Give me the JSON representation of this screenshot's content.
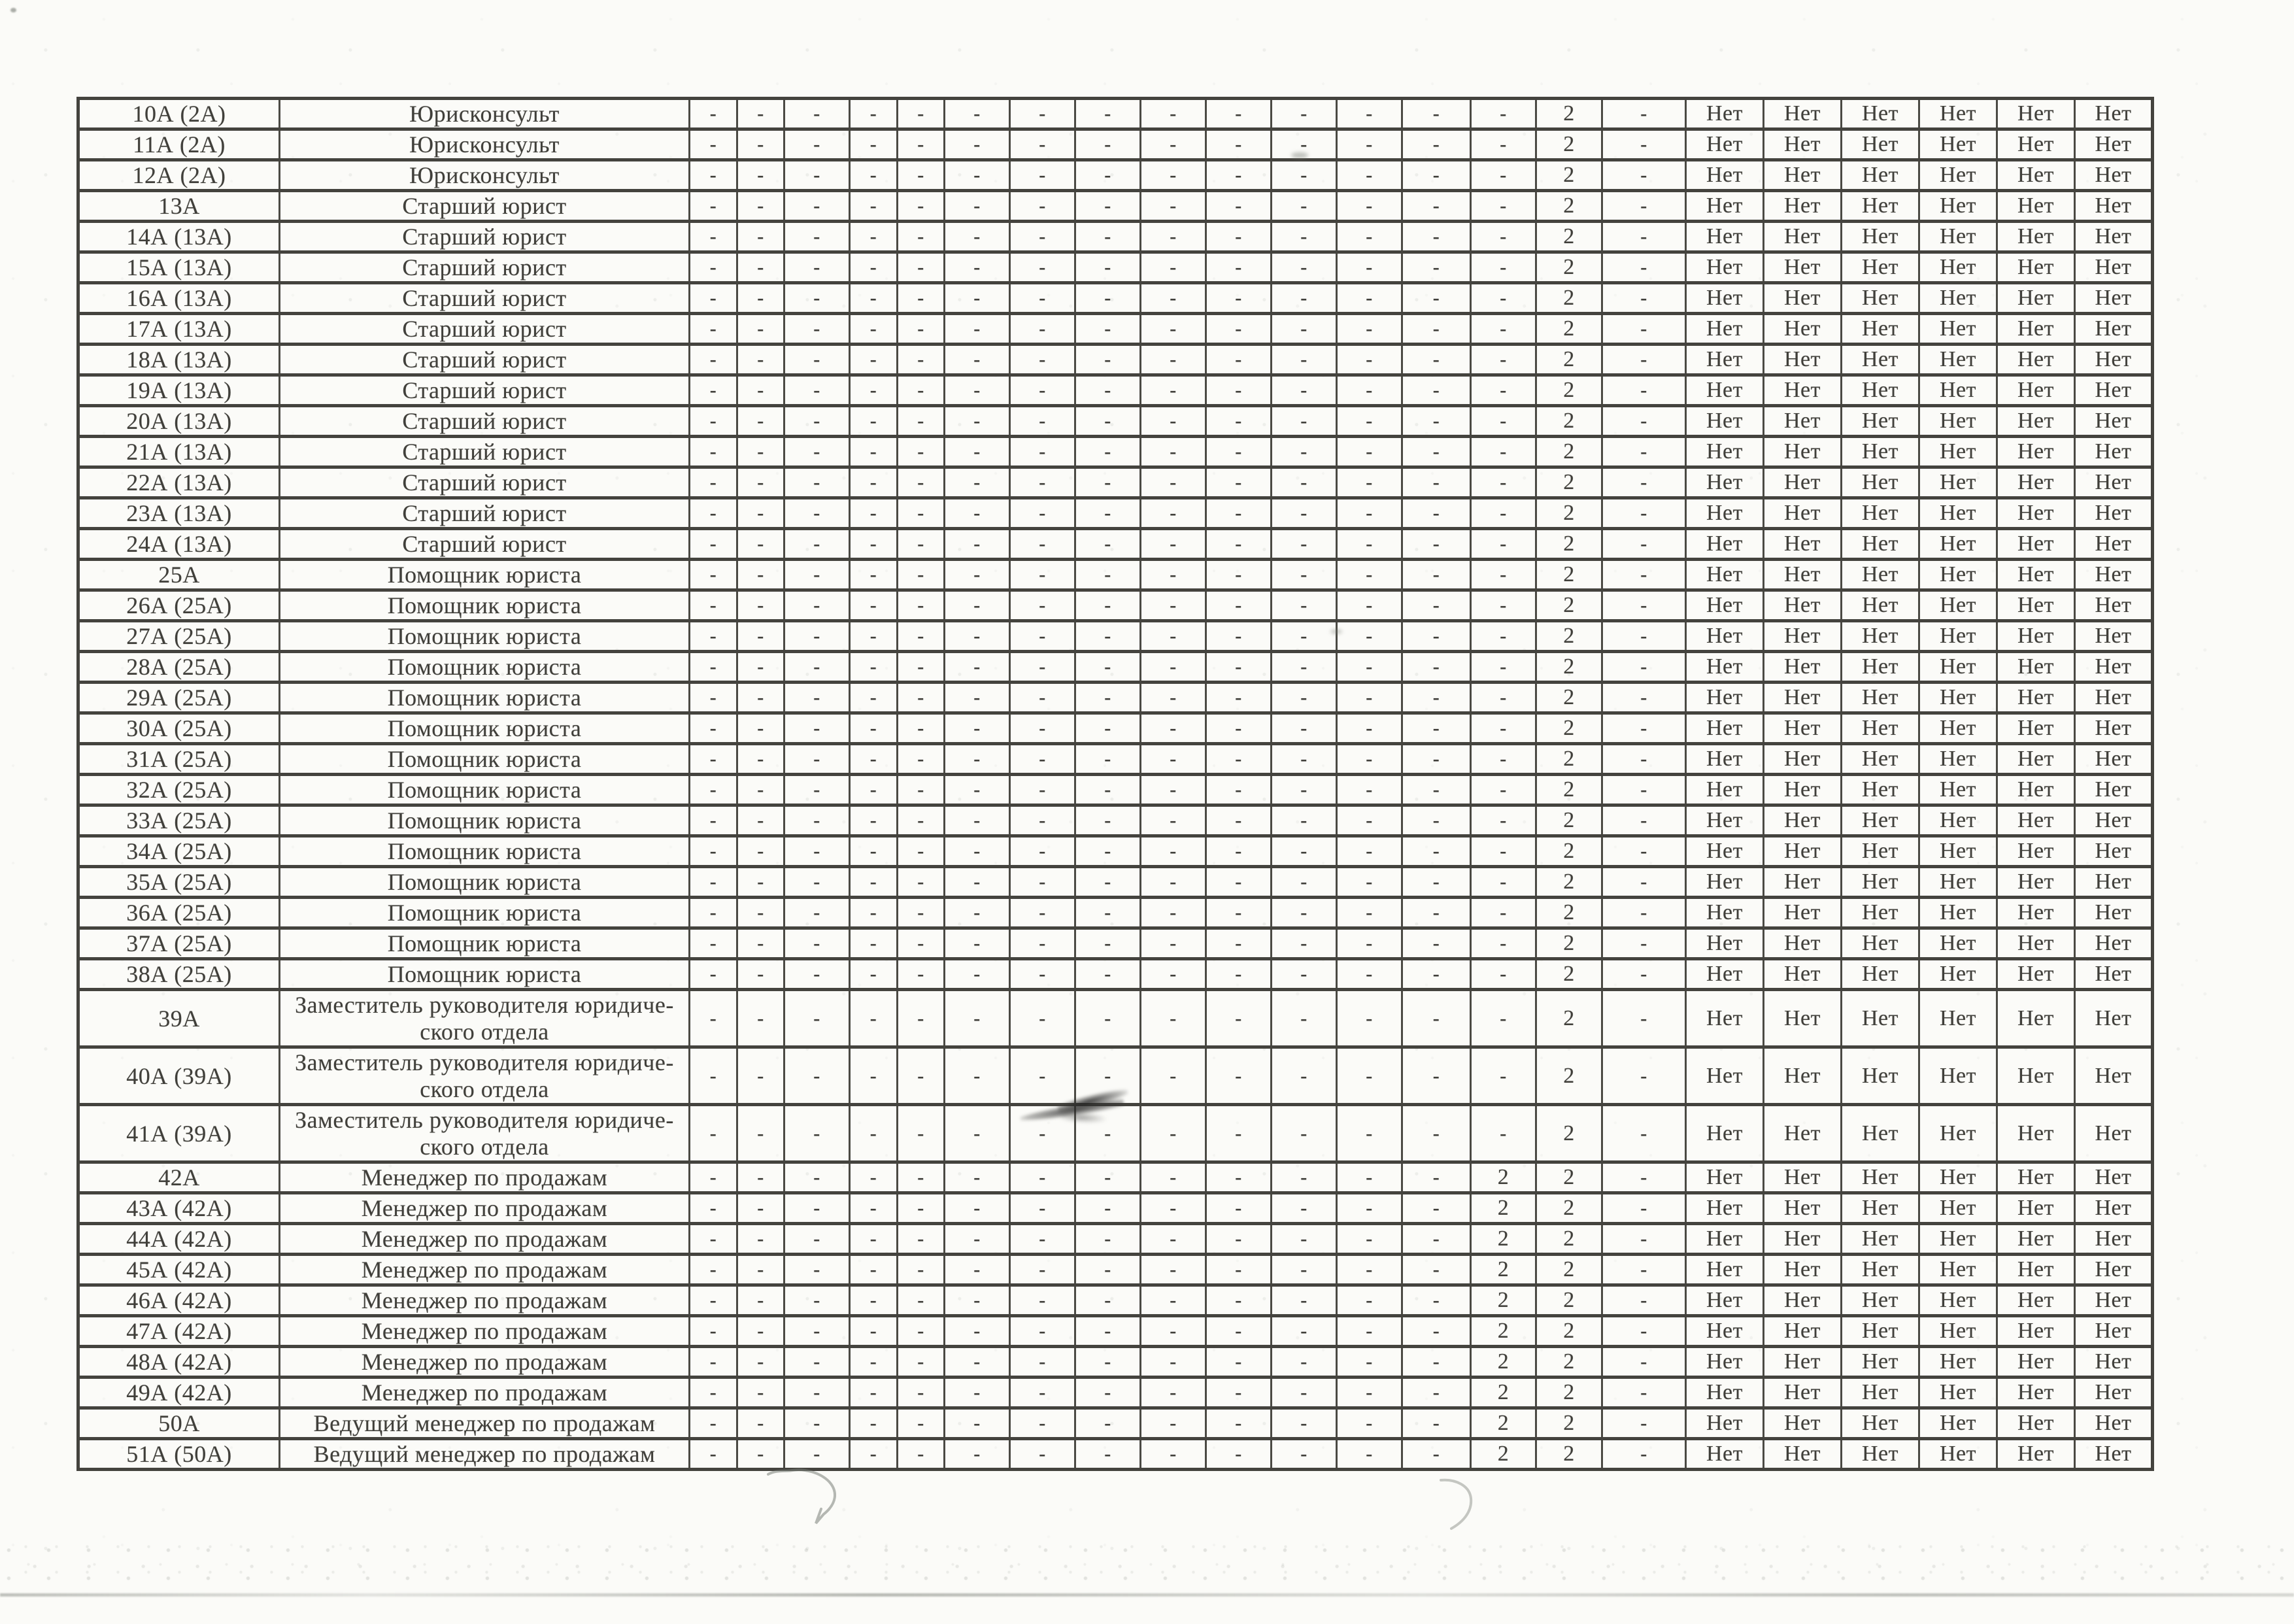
{
  "page": {
    "kind": "scanned staffing table continuation sheet",
    "paper_color": "#fbfbf8",
    "ink_color": "#3d3c37",
    "line_color": "#44433e"
  },
  "table": {
    "value_sets": {
      "upper": [
        "-",
        "-",
        "-",
        "-",
        "-",
        "-",
        "-",
        "-",
        "-",
        "-",
        "-",
        "-",
        "-",
        "-",
        "2",
        "-",
        "Нет",
        "Нет",
        "Нет",
        "Нет",
        "Нет",
        "Нет"
      ],
      "lower": [
        "-",
        "-",
        "-",
        "-",
        "-",
        "-",
        "-",
        "-",
        "-",
        "-",
        "-",
        "-",
        "-",
        "2",
        "2",
        "-",
        "Нет",
        "Нет",
        "Нет",
        "Нет",
        "Нет",
        "Нет"
      ]
    },
    "rows": [
      {
        "code": "10А (2А)",
        "title_lines": [
          "Юрисконсульт"
        ],
        "values": "upper"
      },
      {
        "code": "11А (2А)",
        "title_lines": [
          "Юрисконсульт"
        ],
        "values": "upper"
      },
      {
        "code": "12А (2А)",
        "title_lines": [
          "Юрисконсульт"
        ],
        "values": "upper"
      },
      {
        "code": "13А",
        "title_lines": [
          "Старший юрист"
        ],
        "values": "upper"
      },
      {
        "code": "14А (13А)",
        "title_lines": [
          "Старший юрист"
        ],
        "values": "upper"
      },
      {
        "code": "15А (13А)",
        "title_lines": [
          "Старший юрист"
        ],
        "values": "upper"
      },
      {
        "code": "16А (13А)",
        "title_lines": [
          "Старший юрист"
        ],
        "values": "upper"
      },
      {
        "code": "17А (13А)",
        "title_lines": [
          "Старший юрист"
        ],
        "values": "upper"
      },
      {
        "code": "18А (13А)",
        "title_lines": [
          "Старший юрист"
        ],
        "values": "upper"
      },
      {
        "code": "19А (13А)",
        "title_lines": [
          "Старший юрист"
        ],
        "values": "upper"
      },
      {
        "code": "20А (13А)",
        "title_lines": [
          "Старший юрист"
        ],
        "values": "upper"
      },
      {
        "code": "21А (13А)",
        "title_lines": [
          "Старший юрист"
        ],
        "values": "upper"
      },
      {
        "code": "22А (13А)",
        "title_lines": [
          "Старший юрист"
        ],
        "values": "upper"
      },
      {
        "code": "23А (13А)",
        "title_lines": [
          "Старший юрист"
        ],
        "values": "upper"
      },
      {
        "code": "24А (13А)",
        "title_lines": [
          "Старший юрист"
        ],
        "values": "upper"
      },
      {
        "code": "25А",
        "title_lines": [
          "Помощник юриста"
        ],
        "values": "upper"
      },
      {
        "code": "26А (25А)",
        "title_lines": [
          "Помощник юриста"
        ],
        "values": "upper"
      },
      {
        "code": "27А (25А)",
        "title_lines": [
          "Помощник юриста"
        ],
        "values": "upper"
      },
      {
        "code": "28А (25А)",
        "title_lines": [
          "Помощник юриста"
        ],
        "values": "upper"
      },
      {
        "code": "29А (25А)",
        "title_lines": [
          "Помощник юриста"
        ],
        "values": "upper"
      },
      {
        "code": "30А (25А)",
        "title_lines": [
          "Помощник юриста"
        ],
        "values": "upper"
      },
      {
        "code": "31А (25А)",
        "title_lines": [
          "Помощник юриста"
        ],
        "values": "upper"
      },
      {
        "code": "32А (25А)",
        "title_lines": [
          "Помощник юриста"
        ],
        "values": "upper"
      },
      {
        "code": "33А (25А)",
        "title_lines": [
          "Помощник юриста"
        ],
        "values": "upper"
      },
      {
        "code": "34А (25А)",
        "title_lines": [
          "Помощник юриста"
        ],
        "values": "upper"
      },
      {
        "code": "35А (25А)",
        "title_lines": [
          "Помощник юриста"
        ],
        "values": "upper"
      },
      {
        "code": "36А (25А)",
        "title_lines": [
          "Помощник юриста"
        ],
        "values": "upper"
      },
      {
        "code": "37А (25А)",
        "title_lines": [
          "Помощник юриста"
        ],
        "values": "upper"
      },
      {
        "code": "38А (25А)",
        "title_lines": [
          "Помощник юриста"
        ],
        "values": "upper"
      },
      {
        "code": "39А",
        "title_lines": [
          "Заместитель руководителя юридиче-",
          "ского отдела"
        ],
        "values": "upper"
      },
      {
        "code": "40А (39А)",
        "title_lines": [
          "Заместитель руководителя юридиче-",
          "ского отдела"
        ],
        "values": "upper"
      },
      {
        "code": "41А (39А)",
        "title_lines": [
          "Заместитель руководителя юридиче-",
          "ского отдела"
        ],
        "values": "upper"
      },
      {
        "code": "42А",
        "title_lines": [
          "Менеджер по продажам"
        ],
        "values": "lower"
      },
      {
        "code": "43А (42А)",
        "title_lines": [
          "Менеджер по продажам"
        ],
        "values": "lower"
      },
      {
        "code": "44А (42А)",
        "title_lines": [
          "Менеджер по продажам"
        ],
        "values": "lower"
      },
      {
        "code": "45А (42А)",
        "title_lines": [
          "Менеджер по продажам"
        ],
        "values": "lower"
      },
      {
        "code": "46А (42А)",
        "title_lines": [
          "Менеджер по продажам"
        ],
        "values": "lower"
      },
      {
        "code": "47А (42А)",
        "title_lines": [
          "Менеджер по продажам"
        ],
        "values": "lower"
      },
      {
        "code": "48А (42А)",
        "title_lines": [
          "Менеджер по продажам"
        ],
        "values": "lower"
      },
      {
        "code": "49А (42А)",
        "title_lines": [
          "Менеджер по продажам"
        ],
        "values": "lower"
      },
      {
        "code": "50А",
        "title_lines": [
          "Ведущий менеджер по продажам"
        ],
        "values": "lower"
      },
      {
        "code": "51А (50А)",
        "title_lines": [
          "Ведущий менеджер по продажам"
        ],
        "values": "lower"
      }
    ]
  }
}
